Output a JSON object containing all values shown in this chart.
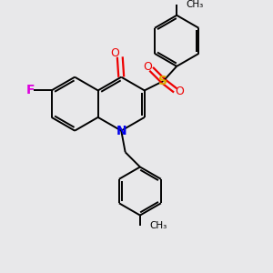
{
  "background_color": "#e8e8ea",
  "bond_color": "#000000",
  "N_color": "#0000ee",
  "O_color": "#ee0000",
  "F_color": "#dd00dd",
  "S_color": "#ddaa00",
  "lw": 1.4,
  "dbo": 0.1,
  "xlim": [
    0,
    10
  ],
  "ylim": [
    0,
    10
  ]
}
